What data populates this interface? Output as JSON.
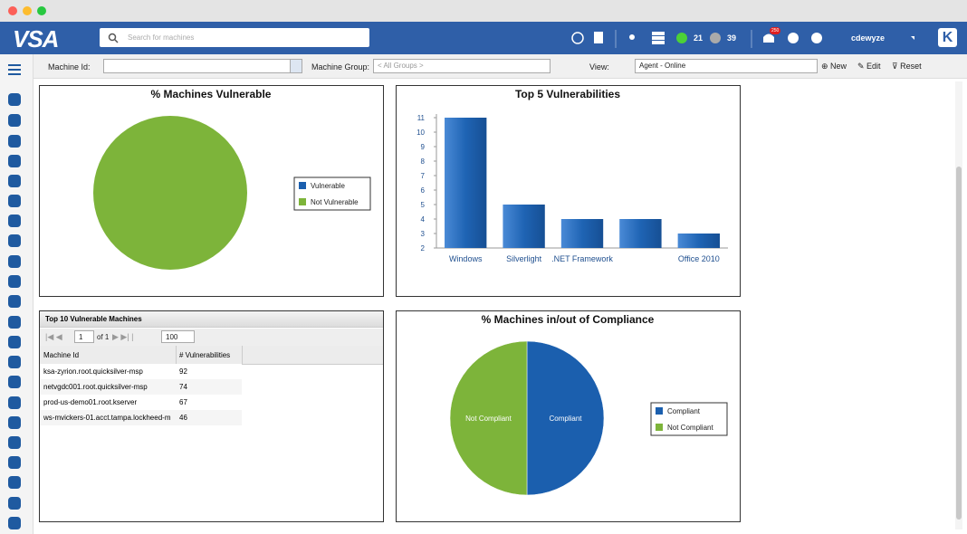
{
  "header": {
    "logo": "VSA",
    "search_placeholder": "Search for machines",
    "online_count": "21",
    "offline_count": "39",
    "notifications": "250",
    "user": "cdewyze"
  },
  "toolbar": {
    "machine_id_label": "Machine Id:",
    "machine_group_label": "Machine Group:",
    "machine_group_value": "< All Groups >",
    "view_label": "View:",
    "view_value": "Agent - Online",
    "new": "New",
    "edit": "Edit",
    "reset": "Reset"
  },
  "chart_data": [
    {
      "type": "pie",
      "title": "% Machines Vulnerable",
      "categories": [
        "Vulnerable",
        "Not Vulnerable"
      ],
      "values": [
        0,
        100
      ],
      "colors": [
        "#1b5fae",
        "#7db43a"
      ],
      "slice_labels": false
    },
    {
      "type": "bar",
      "title": "Top 5 Vulnerabilities",
      "categories": [
        "Windows",
        "Silverlight",
        ".NET Framework",
        null,
        "Office 2010"
      ],
      "values": [
        11,
        5,
        4,
        4,
        3
      ],
      "color": "#1f64b4",
      "ylim": [
        2,
        11
      ],
      "yticks": [
        2,
        3,
        4,
        5,
        6,
        7,
        8,
        9,
        10,
        11
      ],
      "grid": false
    },
    {
      "type": "pie",
      "title": "% Machines in/out of Compliance",
      "categories": [
        "Compliant",
        "Not Compliant"
      ],
      "values": [
        50,
        50
      ],
      "colors": [
        "#1b5fae",
        "#7db43a"
      ],
      "slice_labels": true
    }
  ],
  "table": {
    "title": "Top 10 Vulnerable Machines",
    "page": "1",
    "page_of": "of 1",
    "page_size": "100",
    "columns": [
      "Machine Id",
      "# Vulnerabilities"
    ],
    "rows": [
      [
        "ksa-zyrion.root.quicksilver-msp",
        "92"
      ],
      [
        "netvgdc001.root.quicksilver-msp",
        "74"
      ],
      [
        "prod-us-demo01.root.kserver",
        "67"
      ],
      [
        "ws-mvickers-01.acct.tampa.lockheed-m",
        "46"
      ]
    ]
  }
}
